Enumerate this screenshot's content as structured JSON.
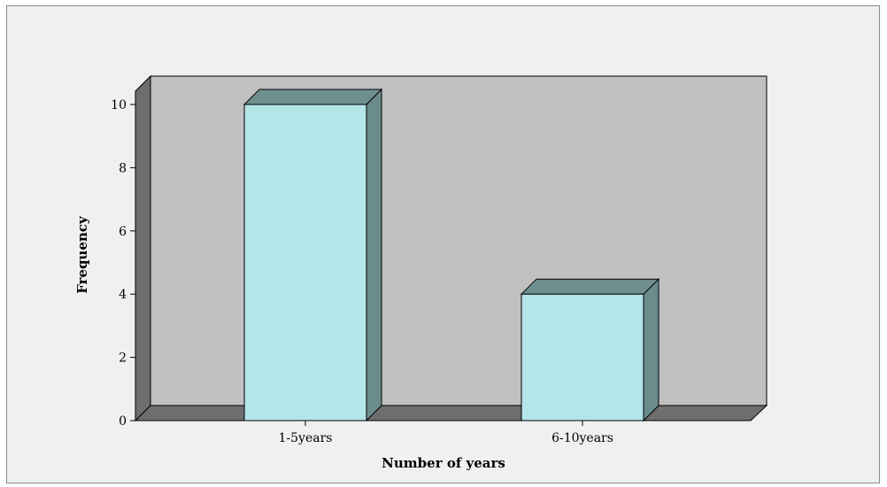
{
  "chart_data": {
    "type": "bar",
    "categories": [
      "1-5years",
      "6-10years"
    ],
    "values": [
      10,
      4
    ],
    "xlabel": "Number of years",
    "ylabel": "Frequency",
    "ylim": [
      0,
      10
    ],
    "yticks": [
      0,
      2,
      4,
      6,
      8,
      10
    ],
    "grid": false,
    "three_d": true,
    "colors": {
      "bar_front": "#b4e5e8",
      "bar_side": "#6a8c8c",
      "bar_top": "#6f8f8f",
      "wall": "#c0c0c0",
      "wall_left": "#6e6e6e",
      "floor": "#6e6e6e",
      "background": "#f0f0f0"
    }
  }
}
